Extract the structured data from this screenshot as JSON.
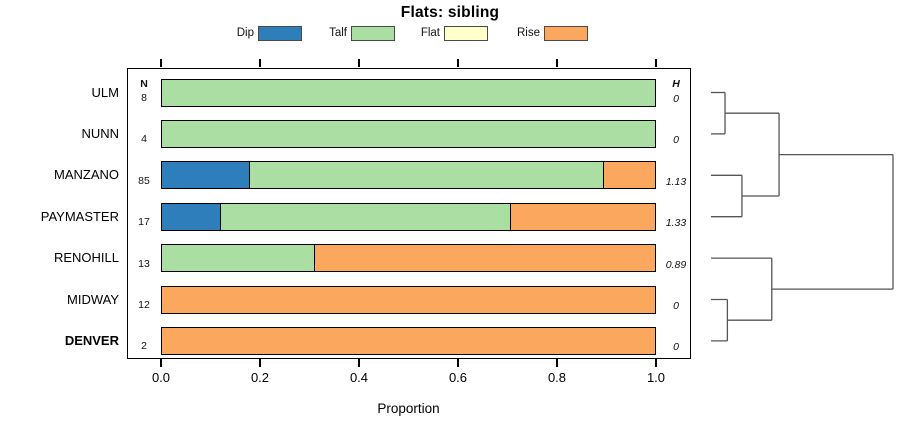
{
  "title": "Flats: sibling",
  "legend": [
    {
      "label": "Dip",
      "color": "#2E7EBB"
    },
    {
      "label": "Talf",
      "color": "#ABDEA3"
    },
    {
      "label": "Flat",
      "color": "#FFFFCC"
    },
    {
      "label": "Rise",
      "color": "#FBA75E"
    }
  ],
  "columns": {
    "n_header": "N",
    "h_header": "H"
  },
  "x_axis": {
    "label": "Proportion",
    "ticks": [
      "0.0",
      "0.2",
      "0.4",
      "0.6",
      "0.8",
      "1.0"
    ]
  },
  "chart_data": {
    "type": "bar",
    "stacked": true,
    "orientation": "horizontal",
    "title": "Flats: sibling",
    "xlabel": "Proportion",
    "xlim": [
      0,
      1
    ],
    "xtick_values": [
      0.0,
      0.2,
      0.4,
      0.6,
      0.8,
      1.0
    ],
    "categories": [
      "ULM",
      "NUNN",
      "MANZANO",
      "PAYMASTER",
      "RENOHILL",
      "MIDWAY",
      "DENVER"
    ],
    "bold_categories": [
      "DENVER"
    ],
    "n_values": [
      8,
      4,
      85,
      17,
      13,
      12,
      2
    ],
    "h_values": [
      "0",
      "0",
      "1.13",
      "1.33",
      "0.89",
      "0",
      "0"
    ],
    "series": [
      {
        "name": "Dip",
        "color": "#2E7EBB",
        "values": [
          0,
          0,
          0.176,
          0.118,
          0,
          0,
          0
        ]
      },
      {
        "name": "Talf",
        "color": "#ABDEA3",
        "values": [
          1,
          1,
          0.718,
          0.588,
          0.308,
          0,
          0
        ]
      },
      {
        "name": "Flat",
        "color": "#FFFFCC",
        "values": [
          0,
          0,
          0,
          0,
          0,
          0,
          0
        ]
      },
      {
        "name": "Rise",
        "color": "#FBA75E",
        "values": [
          0,
          0,
          0.106,
          0.294,
          0.692,
          1,
          1
        ]
      }
    ],
    "dendrogram": {
      "h": 1.0,
      "children": [
        {
          "h": 0.374,
          "children": [
            {
              "h": 0.077,
              "children": [
                {
                  "leaf": "ULM"
                },
                {
                  "leaf": "NUNN"
                }
              ]
            },
            {
              "h": 0.17,
              "children": [
                {
                  "leaf": "MANZANO"
                },
                {
                  "leaf": "PAYMASTER"
                }
              ]
            }
          ]
        },
        {
          "h": 0.334,
          "children": [
            {
              "leaf": "RENOHILL"
            },
            {
              "h": 0.09,
              "children": [
                {
                  "leaf": "MIDWAY"
                },
                {
                  "leaf": "DENVER"
                }
              ]
            }
          ]
        }
      ]
    }
  }
}
